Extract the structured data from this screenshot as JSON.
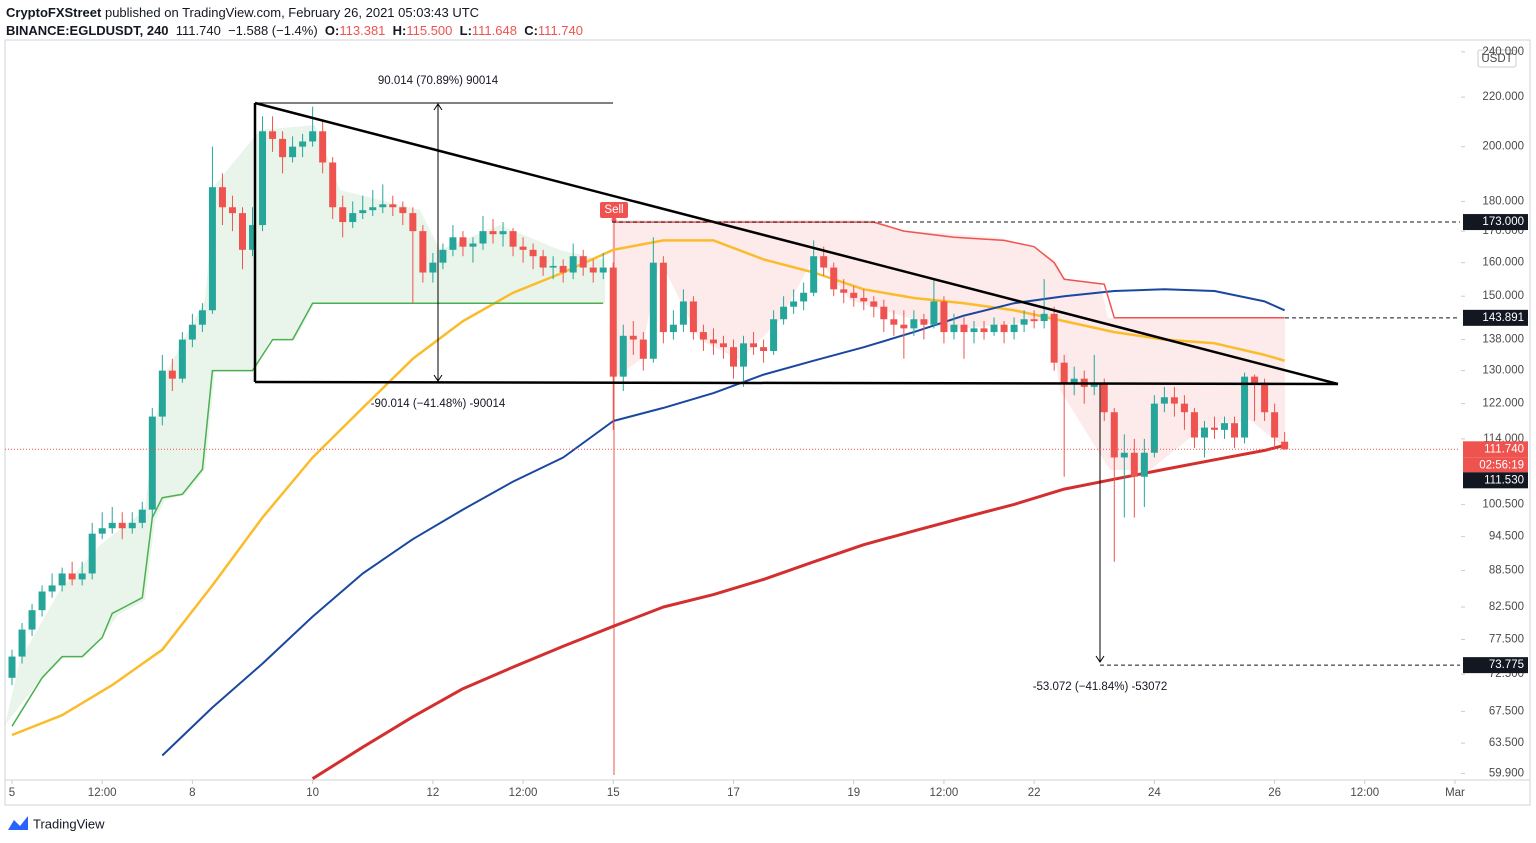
{
  "header": {
    "publisher": "CryptoFXStreet",
    "published": " published on TradingView.com, February 26, 2021 05:03:43 UTC",
    "legend": [
      "BINANCE:EGLDUSDT, 240",
      "111.740",
      "−1.588 (−1.4%)",
      "O:",
      "113.381",
      "H:",
      "115.500",
      "L:",
      "111.648",
      "C:",
      "111.740"
    ]
  },
  "chart_data": {
    "type": "candlestick",
    "log_scale": true,
    "currency": "USDT",
    "up_color": "#26a69a",
    "down_color": "#ef5350",
    "xlim": [
      -0.7,
      144.5
    ],
    "ylim": [
      59.15,
      244.6
    ],
    "xticks": [
      {
        "value": 0,
        "label": "5"
      },
      {
        "value": 9,
        "label": "12:00"
      },
      {
        "value": 18,
        "label": "8"
      },
      {
        "value": 30,
        "label": "10"
      },
      {
        "value": 42,
        "label": "12"
      },
      {
        "value": 51,
        "label": "12:00"
      },
      {
        "value": 60,
        "label": "15"
      },
      {
        "value": 72,
        "label": "17"
      },
      {
        "value": 84,
        "label": "19"
      },
      {
        "value": 93,
        "label": "12:00"
      },
      {
        "value": 102,
        "label": "22"
      },
      {
        "value": 114,
        "label": "24"
      },
      {
        "value": 126,
        "label": "26"
      },
      {
        "value": 135,
        "label": "12:00"
      },
      {
        "value": 144,
        "label": "Mar"
      }
    ],
    "yticks": [
      {
        "value": 240,
        "label": "240.000"
      },
      {
        "value": 220,
        "label": "220.000"
      },
      {
        "value": 200,
        "label": "200.000"
      },
      {
        "value": 180,
        "label": "180.000"
      },
      {
        "value": 170,
        "label": "170.000"
      },
      {
        "value": 160,
        "label": "160.000"
      },
      {
        "value": 150,
        "label": "150.000"
      },
      {
        "value": 138,
        "label": "138.000"
      },
      {
        "value": 130,
        "label": "130.000"
      },
      {
        "value": 122,
        "label": "122.000"
      },
      {
        "value": 114,
        "label": "114.000"
      },
      {
        "value": 100.5,
        "label": "100.500"
      },
      {
        "value": 94.5,
        "label": "94.500"
      },
      {
        "value": 88.5,
        "label": "88.500"
      },
      {
        "value": 82.5,
        "label": "82.500"
      },
      {
        "value": 77.5,
        "label": "77.500"
      },
      {
        "value": 72.5,
        "label": "72.500"
      },
      {
        "value": 67.5,
        "label": "67.500"
      },
      {
        "value": 63.5,
        "label": "63.500"
      },
      {
        "value": 59.9,
        "label": "59.900"
      }
    ],
    "ohlc": [
      [
        72,
        76,
        71,
        75
      ],
      [
        75,
        80,
        74,
        79
      ],
      [
        79,
        83,
        78,
        82
      ],
      [
        82,
        86,
        81,
        85
      ],
      [
        85,
        88,
        84,
        86
      ],
      [
        86,
        89,
        85,
        88
      ],
      [
        88,
        90,
        86,
        87
      ],
      [
        87,
        90,
        86,
        88
      ],
      [
        88,
        97,
        87,
        95
      ],
      [
        95,
        99,
        94,
        96
      ],
      [
        96,
        100,
        95,
        97
      ],
      [
        97,
        99,
        94,
        96
      ],
      [
        96,
        99,
        95,
        97
      ],
      [
        97,
        101,
        96,
        99.5
      ],
      [
        99.5,
        121,
        98,
        119
      ],
      [
        119,
        134,
        117,
        130
      ],
      [
        130,
        133,
        125,
        128
      ],
      [
        128,
        140,
        127,
        138
      ],
      [
        138,
        145,
        136,
        142
      ],
      [
        142,
        148,
        140,
        146
      ],
      [
        146,
        200,
        145,
        185
      ],
      [
        185,
        190,
        172,
        178
      ],
      [
        178,
        182,
        170,
        176
      ],
      [
        176,
        178,
        158,
        164
      ],
      [
        164,
        178,
        162,
        172
      ],
      [
        172,
        212,
        170,
        206
      ],
      [
        206,
        212,
        198,
        203
      ],
      [
        203,
        206,
        190,
        196
      ],
      [
        196,
        204,
        194,
        200
      ],
      [
        200,
        205,
        196,
        202
      ],
      [
        202,
        216,
        200,
        206
      ],
      [
        206,
        210,
        190,
        194
      ],
      [
        194,
        196,
        174,
        178
      ],
      [
        178,
        182,
        168,
        173
      ],
      [
        173,
        180,
        171,
        176
      ],
      [
        176,
        182,
        174,
        177
      ],
      [
        177,
        184,
        175,
        178
      ],
      [
        178,
        186,
        176,
        179
      ],
      [
        179,
        182,
        175,
        178
      ],
      [
        178,
        180,
        172,
        176
      ],
      [
        176,
        178,
        148,
        170
      ],
      [
        170,
        172,
        154,
        157
      ],
      [
        157,
        163,
        154,
        160
      ],
      [
        160,
        166,
        158,
        164
      ],
      [
        164,
        172,
        162,
        168
      ],
      [
        168,
        170,
        162,
        165
      ],
      [
        165,
        168,
        160,
        166
      ],
      [
        166,
        175,
        164,
        170
      ],
      [
        170,
        174,
        166,
        169
      ],
      [
        169,
        173,
        165,
        170
      ],
      [
        170,
        171,
        162,
        165
      ],
      [
        165,
        168,
        160,
        164
      ],
      [
        164,
        166,
        158,
        162
      ],
      [
        162,
        164,
        156,
        158.5
      ],
      [
        158.5,
        162,
        155,
        159
      ],
      [
        159,
        161,
        154,
        157
      ],
      [
        157,
        166,
        155,
        162
      ],
      [
        162,
        164,
        156,
        158.5
      ],
      [
        158.5,
        161,
        154,
        157
      ],
      [
        157,
        163,
        155,
        158.5
      ],
      [
        158.5,
        160,
        116,
        128.5
      ],
      [
        128.5,
        142,
        125,
        139
      ],
      [
        139,
        143,
        134,
        138
      ],
      [
        138,
        140,
        130,
        133
      ],
      [
        133,
        168,
        132,
        160
      ],
      [
        160,
        162,
        137,
        140
      ],
      [
        140,
        146,
        138,
        142
      ],
      [
        142,
        152,
        140,
        148.5
      ],
      [
        148.5,
        150,
        138,
        140
      ],
      [
        140,
        142,
        135,
        138
      ],
      [
        138,
        141,
        134,
        137
      ],
      [
        137,
        139,
        133,
        136
      ],
      [
        136,
        138,
        128,
        131
      ],
      [
        131,
        139,
        126,
        137
      ],
      [
        137,
        140,
        134,
        136
      ],
      [
        136,
        138,
        132,
        135
      ],
      [
        135,
        146,
        134,
        143.5
      ],
      [
        143.5,
        150,
        142,
        147
      ],
      [
        147,
        152,
        145,
        148.5
      ],
      [
        148.5,
        154,
        146,
        151
      ],
      [
        151,
        167,
        150,
        162
      ],
      [
        162,
        165,
        156,
        158.5
      ],
      [
        158.5,
        160,
        150,
        152
      ],
      [
        152,
        155,
        148,
        151
      ],
      [
        151,
        153,
        147,
        149.5
      ],
      [
        149.5,
        152,
        146,
        148.5
      ],
      [
        148.5,
        150,
        144,
        147
      ],
      [
        147,
        149,
        140,
        143.5
      ],
      [
        143.5,
        146,
        139,
        142
      ],
      [
        142,
        146,
        133,
        141
      ],
      [
        141,
        146,
        139,
        143.5
      ],
      [
        143.5,
        145,
        138,
        142
      ],
      [
        142,
        155,
        141,
        148.5
      ],
      [
        148.5,
        150,
        137,
        140
      ],
      [
        140,
        145,
        138,
        142
      ],
      [
        142,
        144,
        133,
        140
      ],
      [
        140,
        143,
        137,
        141
      ],
      [
        141,
        143,
        138,
        140
      ],
      [
        140,
        144,
        139,
        142
      ],
      [
        142,
        143,
        137,
        140
      ],
      [
        140,
        144,
        138,
        142
      ],
      [
        142,
        146,
        140,
        143.5
      ],
      [
        143.5,
        146,
        141,
        143
      ],
      [
        143,
        155,
        141,
        145
      ],
      [
        145,
        147,
        130,
        132
      ],
      [
        132,
        134,
        106,
        127
      ],
      [
        127,
        131,
        124,
        128
      ],
      [
        128,
        130,
        122,
        126
      ],
      [
        126,
        134,
        124,
        127
      ],
      [
        127,
        128,
        118,
        120
      ],
      [
        120,
        121,
        90,
        110
      ],
      [
        110,
        115,
        98,
        111
      ],
      [
        111,
        114,
        98,
        106
      ],
      [
        106,
        114,
        100,
        111
      ],
      [
        111,
        124,
        110,
        122
      ],
      [
        122,
        126,
        120,
        123.5
      ],
      [
        123.5,
        126,
        119,
        122
      ],
      [
        122,
        124,
        116,
        120
      ],
      [
        120,
        121,
        112,
        114.3
      ],
      [
        114.3,
        118,
        110,
        116.5
      ],
      [
        116.5,
        119,
        114,
        116
      ],
      [
        116,
        119,
        114,
        117.5
      ],
      [
        117.5,
        119,
        112,
        114.3
      ],
      [
        114.3,
        129.5,
        113,
        128.5
      ],
      [
        128.5,
        129,
        118,
        127
      ],
      [
        127,
        128,
        118,
        120
      ],
      [
        120,
        122,
        112,
        114.3
      ],
      [
        113.381,
        115.5,
        111.648,
        111.74
      ]
    ],
    "lines": [
      {
        "color": "#fbbc2c",
        "width": 2.5,
        "x": [
          0,
          5,
          10,
          15,
          20,
          25,
          30,
          35,
          40,
          45,
          50,
          55,
          60,
          65,
          70,
          75,
          80,
          85,
          90,
          95,
          100,
          105,
          110,
          115,
          120,
          125,
          127
        ],
        "values": [
          64.5,
          67,
          71,
          76,
          86,
          98,
          110,
          121,
          133,
          143,
          151,
          157,
          164,
          167,
          167,
          161,
          157,
          152,
          149.5,
          148,
          146,
          143,
          140,
          138,
          137,
          134,
          132.5
        ]
      },
      {
        "color": "#1a47a0",
        "width": 2,
        "x": [
          0,
          5,
          10,
          15,
          20,
          25,
          30,
          35,
          40,
          45,
          50,
          55,
          60,
          65,
          70,
          75,
          80,
          85,
          90,
          95,
          100,
          105,
          110,
          115,
          120,
          125,
          127
        ],
        "values": [
          null,
          null,
          null,
          62,
          68,
          74,
          81,
          88,
          94,
          99.5,
          105,
          110,
          118,
          121,
          124.5,
          129,
          132.5,
          136,
          140,
          144.5,
          148,
          150,
          151.5,
          152,
          151.5,
          148.5,
          146
        ]
      },
      {
        "color": "#d32f2f",
        "width": 3,
        "x": [
          0,
          5,
          10,
          15,
          20,
          25,
          30,
          35,
          40,
          45,
          50,
          55,
          60,
          65,
          70,
          75,
          80,
          85,
          90,
          95,
          100,
          105,
          110,
          115,
          120,
          125,
          127
        ],
        "values": [
          null,
          null,
          null,
          null,
          null,
          null,
          59.3,
          63,
          66.8,
          70.5,
          73.5,
          76.5,
          79.5,
          82.5,
          84.5,
          87,
          90,
          93,
          95.5,
          98,
          100.5,
          103.5,
          105.5,
          107.5,
          109.5,
          111.5,
          112.6
        ]
      },
      {
        "color": "#4caf50",
        "width": 1.5,
        "x": [
          0,
          3,
          5,
          7,
          9,
          10,
          13,
          14,
          15,
          17,
          19,
          20,
          24,
          26,
          28,
          30,
          59
        ],
        "values": [
          65.6,
          72,
          75,
          75,
          77.8,
          81.5,
          84,
          98,
          101.8,
          102.5,
          107.5,
          130,
          130,
          138,
          138,
          148,
          148
        ]
      },
      {
        "color": "#f05350",
        "width": 1.5,
        "x": [
          60,
          86,
          89,
          94,
          99,
          102,
          104,
          105,
          109,
          110,
          127
        ],
        "values": [
          173,
          173,
          170,
          168,
          167,
          165,
          160,
          155,
          153.5,
          143.891,
          143.891
        ]
      }
    ],
    "price_labels": [
      {
        "value": 173,
        "label": "173.000",
        "color": "#131722"
      },
      {
        "value": 143.891,
        "label": "143.891",
        "color": "#131722"
      },
      {
        "value": 111.74,
        "label": "111.740",
        "color": "#ef5350",
        "countdown": "02:56:19"
      },
      {
        "value": 111.53,
        "label": "111.530",
        "color": "#131722"
      },
      {
        "value": 73.775,
        "label": "73.775",
        "color": "#131722"
      }
    ],
    "annotations": {
      "sell": "Sell",
      "measure_up": "90.014  (70.89%)  90014",
      "measure_down": "-90.014  (−41.48%)  -90014",
      "measure_down2": "-53.072  (−41.84%)  -53072"
    }
  },
  "footer": {
    "brand": "TradingView"
  }
}
